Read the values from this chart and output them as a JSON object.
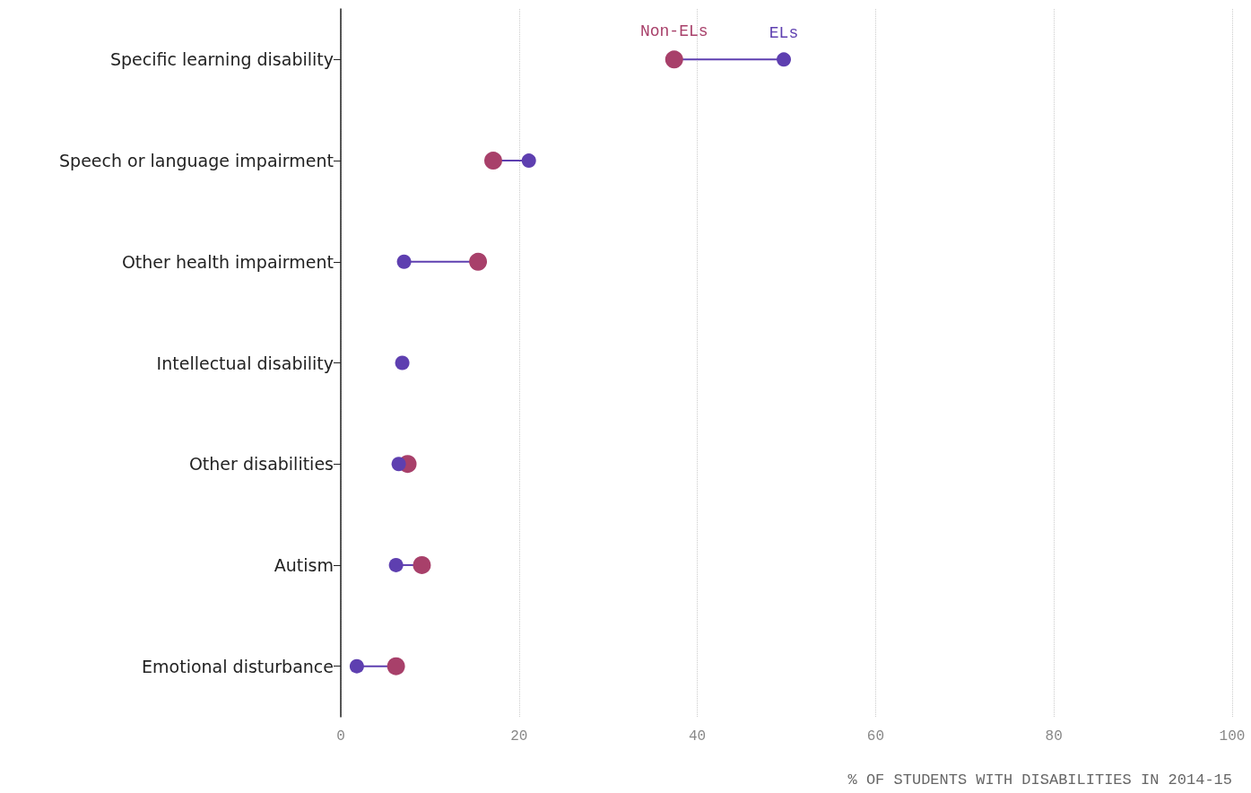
{
  "chart_data": {
    "type": "scatter",
    "orientation": "horizontal",
    "xlabel": "% OF STUDENTS WITH DISABILITIES IN 2014-15",
    "categories": [
      "Specific learning disability",
      "Speech or language impairment",
      "Other health impairment",
      "Intellectual disability",
      "Other disabilities",
      "Autism",
      "Emotional disturbance"
    ],
    "series": [
      {
        "name": "Non-ELs",
        "color": "#a8406a",
        "values": [
          37.4,
          17.1,
          15.4,
          null,
          7.5,
          9.1,
          6.2
        ]
      },
      {
        "name": "ELs",
        "color": "#5e3fb0",
        "values": [
          49.7,
          21.1,
          7.1,
          6.9,
          6.5,
          6.2,
          1.8
        ]
      }
    ],
    "xlim": [
      0,
      100
    ],
    "xticks": [
      0,
      20,
      40,
      60,
      80,
      100
    ],
    "grid": "x",
    "legend": false,
    "marker": "circle"
  }
}
